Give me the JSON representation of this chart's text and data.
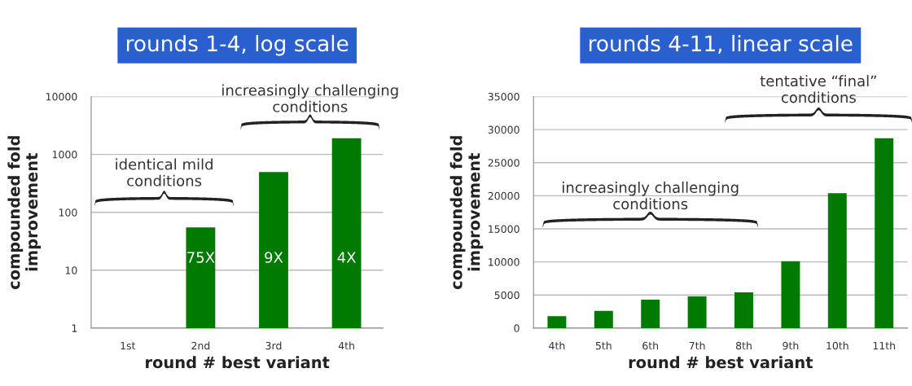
{
  "chart_data": [
    {
      "type": "bar",
      "title": "rounds 1-4, log scale",
      "xlabel": "round # best variant",
      "ylabel": "compounded fold\nimprovement",
      "categories": [
        "1st",
        "2nd",
        "3rd",
        "4th"
      ],
      "values": [
        null,
        55,
        495,
        1900
      ],
      "color": "#007a00",
      "log": true,
      "ylim": [
        1,
        10000
      ],
      "yticks": [
        1,
        10,
        100,
        1000,
        10000
      ],
      "grid": "y",
      "annotations": [
        "identical mild\nconditions",
        "increasingly challenging\nconditions",
        "75X",
        "9X",
        "4X"
      ]
    },
    {
      "type": "bar",
      "title": "rounds 4-11, linear scale",
      "xlabel": "round # best variant",
      "ylabel": "compounded fold\nimprovement",
      "categories": [
        "4th",
        "5th",
        "6th",
        "7th",
        "8th",
        "9th",
        "10th",
        "11th"
      ],
      "values": [
        1800,
        2600,
        4300,
        4800,
        5400,
        10100,
        20400,
        28700
      ],
      "color": "#007a00",
      "ylim": [
        0,
        35000
      ],
      "yticks": [
        0,
        5000,
        10000,
        15000,
        20000,
        25000,
        30000,
        35000
      ],
      "grid": "y",
      "annotations": [
        "increasingly challenging\nconditions",
        "tentative “final”\nconditions"
      ]
    }
  ]
}
